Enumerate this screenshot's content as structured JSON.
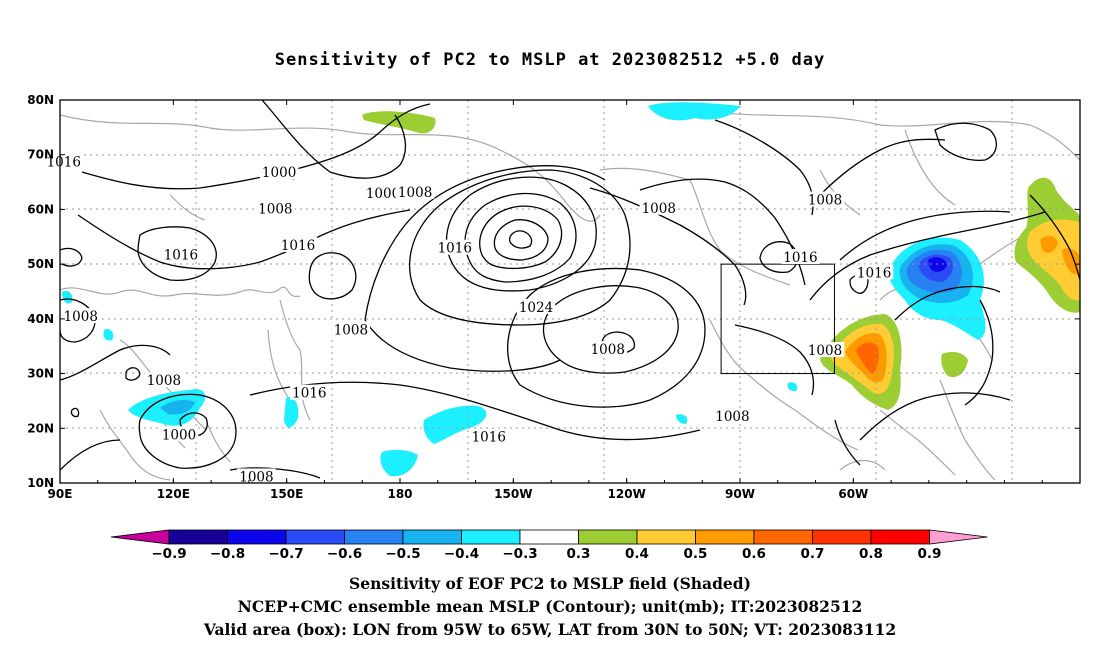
{
  "title": "Sensitivity of PC2 to MSLP at 2023082512 +5.0 day",
  "map": {
    "lon_labels": [
      "90E",
      "120E",
      "150E",
      "180",
      "150W",
      "120W",
      "90W",
      "60W"
    ],
    "lat_labels": [
      "80N",
      "70N",
      "60N",
      "50N",
      "40N",
      "30N",
      "20N",
      "10N"
    ],
    "contour_labels": [
      {
        "text": "1016",
        "lon": 91,
        "lat": 68.8
      },
      {
        "text": "1000",
        "lon": 148,
        "lat": 66.8
      },
      {
        "text": "1008",
        "lon": 147,
        "lat": 60.2
      },
      {
        "text": "1016",
        "lon": 122,
        "lat": 51.8
      },
      {
        "text": "1016",
        "lon": 153,
        "lat": 53.5
      },
      {
        "text": "1000",
        "lon": 175.5,
        "lat": 63
      },
      {
        "text": "1008",
        "lon": 184,
        "lat": 63.2
      },
      {
        "text": "1016",
        "lon": 194.5,
        "lat": 53
      },
      {
        "text": "1008",
        "lon": 248.5,
        "lat": 60.3
      },
      {
        "text": "1008",
        "lon": 292.5,
        "lat": 61.8
      },
      {
        "text": "1016",
        "lon": 286,
        "lat": 51.3
      },
      {
        "text": "1016",
        "lon": 305.5,
        "lat": 48.5
      },
      {
        "text": "1024",
        "lon": 216,
        "lat": 42.2
      },
      {
        "text": "1008",
        "lon": 95.5,
        "lat": 40.5
      },
      {
        "text": "1008",
        "lon": 167,
        "lat": 38.1
      },
      {
        "text": "1008",
        "lon": 235,
        "lat": 34.5
      },
      {
        "text": "1008",
        "lon": 292.5,
        "lat": 34.3
      },
      {
        "text": "1016",
        "lon": 156,
        "lat": 26.5
      },
      {
        "text": "1008",
        "lon": 117.5,
        "lat": 28.8
      },
      {
        "text": "1000",
        "lon": 121.5,
        "lat": 18.9
      },
      {
        "text": "1016",
        "lon": 203.5,
        "lat": 18.5
      },
      {
        "text": "1008",
        "lon": 268,
        "lat": 22.2
      },
      {
        "text": "1008",
        "lon": 142,
        "lat": 11.2
      }
    ],
    "valid_box": {
      "lon_min": -95,
      "lon_max": -65,
      "lat_min": 30,
      "lat_max": 50
    }
  },
  "colorbar": {
    "labels": [
      "-0.9",
      "-0.8",
      "-0.7",
      "-0.6",
      "-0.5",
      "-0.4",
      "-0.3",
      "0.3",
      "0.4",
      "0.5",
      "0.6",
      "0.7",
      "0.8",
      "0.9"
    ],
    "colors": [
      "#160097",
      "#0d05ec",
      "#2a4bf5",
      "#2781f3",
      "#17b2f0",
      "#1cefff",
      "#ffffff",
      "#9ccd33",
      "#ffcd33",
      "#ff9a00",
      "#ff6500",
      "#ff3200",
      "#ff0000"
    ],
    "low_end_color": "#c8009b",
    "high_end_color": "#ff9ed3"
  },
  "captions": {
    "line1": "Sensitivity of EOF PC2 to MSLP field (Shaded)",
    "line2": "NCEP+CMC ensemble mean MSLP (Contour); unit(mb); IT:2023082512",
    "line3": "Valid area (box): LON from 95W to 65W, LAT from 30N to 50N; VT: 2023083112"
  }
}
